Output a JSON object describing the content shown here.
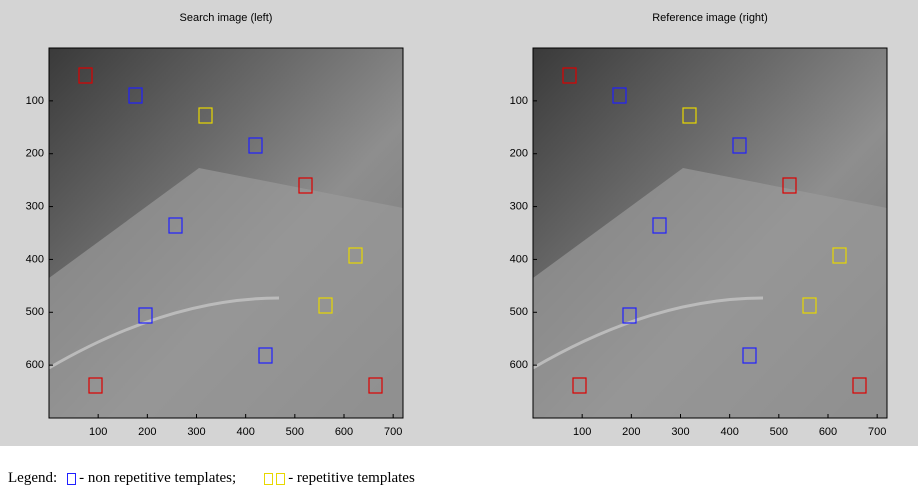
{
  "figure": {
    "panels": [
      {
        "title": "Search image (left)",
        "xlim": [
          0,
          720
        ],
        "ylim": [
          0,
          700
        ],
        "xticks": [
          100,
          200,
          300,
          400,
          500,
          600,
          700
        ],
        "yticks": [
          100,
          200,
          300,
          400,
          500,
          600
        ]
      },
      {
        "title": "Reference image (right)",
        "xlim": [
          0,
          720
        ],
        "ylim": [
          0,
          700
        ],
        "xticks": [
          100,
          200,
          300,
          400,
          500,
          600,
          700
        ],
        "yticks": [
          100,
          200,
          300,
          400,
          500,
          600
        ]
      }
    ]
  },
  "legend": {
    "label": "Legend:",
    "items": [
      {
        "text": "- non repetitive templates;",
        "colors": [
          "#2020ff"
        ]
      },
      {
        "text": "- repetitive templates",
        "colors": [
          "#e8d800",
          "#e8d800"
        ]
      }
    ]
  }
}
